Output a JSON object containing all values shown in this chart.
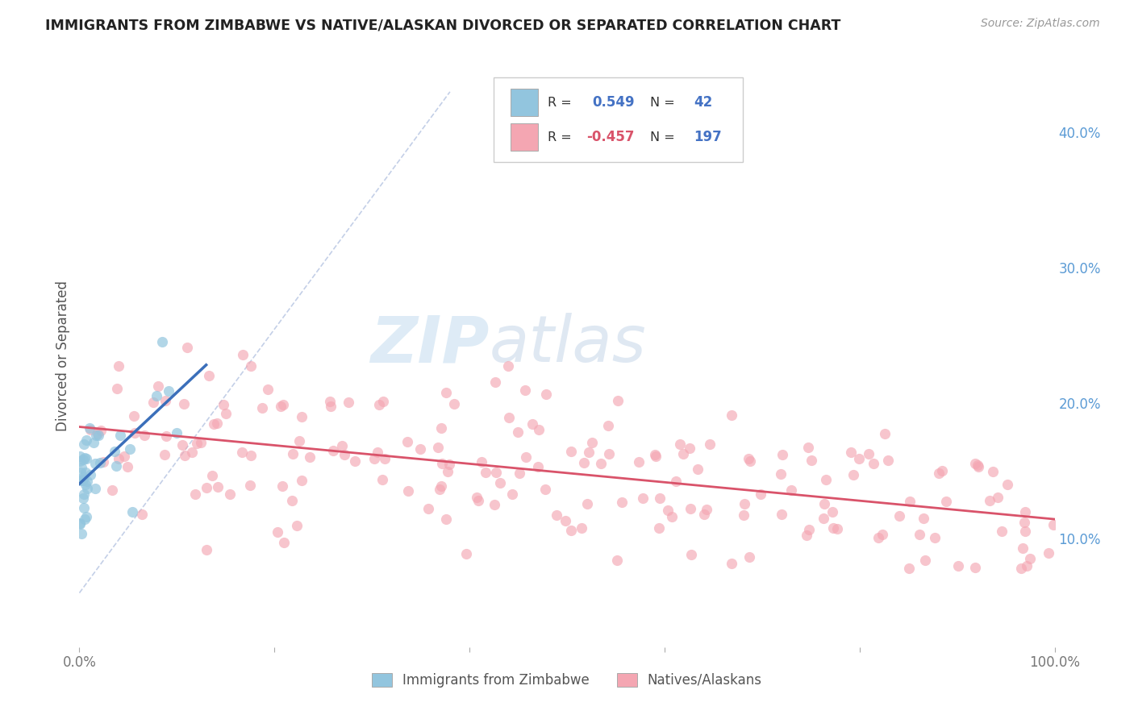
{
  "title": "IMMIGRANTS FROM ZIMBABWE VS NATIVE/ALASKAN DIVORCED OR SEPARATED CORRELATION CHART",
  "source_text": "Source: ZipAtlas.com",
  "ylabel": "Divorced or Separated",
  "watermark_zip": "ZIP",
  "watermark_atlas": "atlas",
  "blue_R": 0.549,
  "blue_N": 42,
  "pink_R": -0.457,
  "pink_N": 197,
  "xlim": [
    0.0,
    1.0
  ],
  "ylim": [
    0.02,
    0.45
  ],
  "y_ticks_right": [
    0.1,
    0.2,
    0.3,
    0.4
  ],
  "y_tick_labels_right": [
    "10.0%",
    "20.0%",
    "30.0%",
    "40.0%"
  ],
  "blue_color": "#92c5de",
  "pink_color": "#f4a6b2",
  "blue_line_color": "#3b6fba",
  "pink_line_color": "#d9536a",
  "background_color": "#ffffff",
  "legend_label_blue": "Immigrants from Zimbabwe",
  "legend_label_pink": "Natives/Alaskans",
  "grid_color": "#dddddd",
  "tick_label_color": "#777777",
  "right_tick_color": "#5b9bd5"
}
